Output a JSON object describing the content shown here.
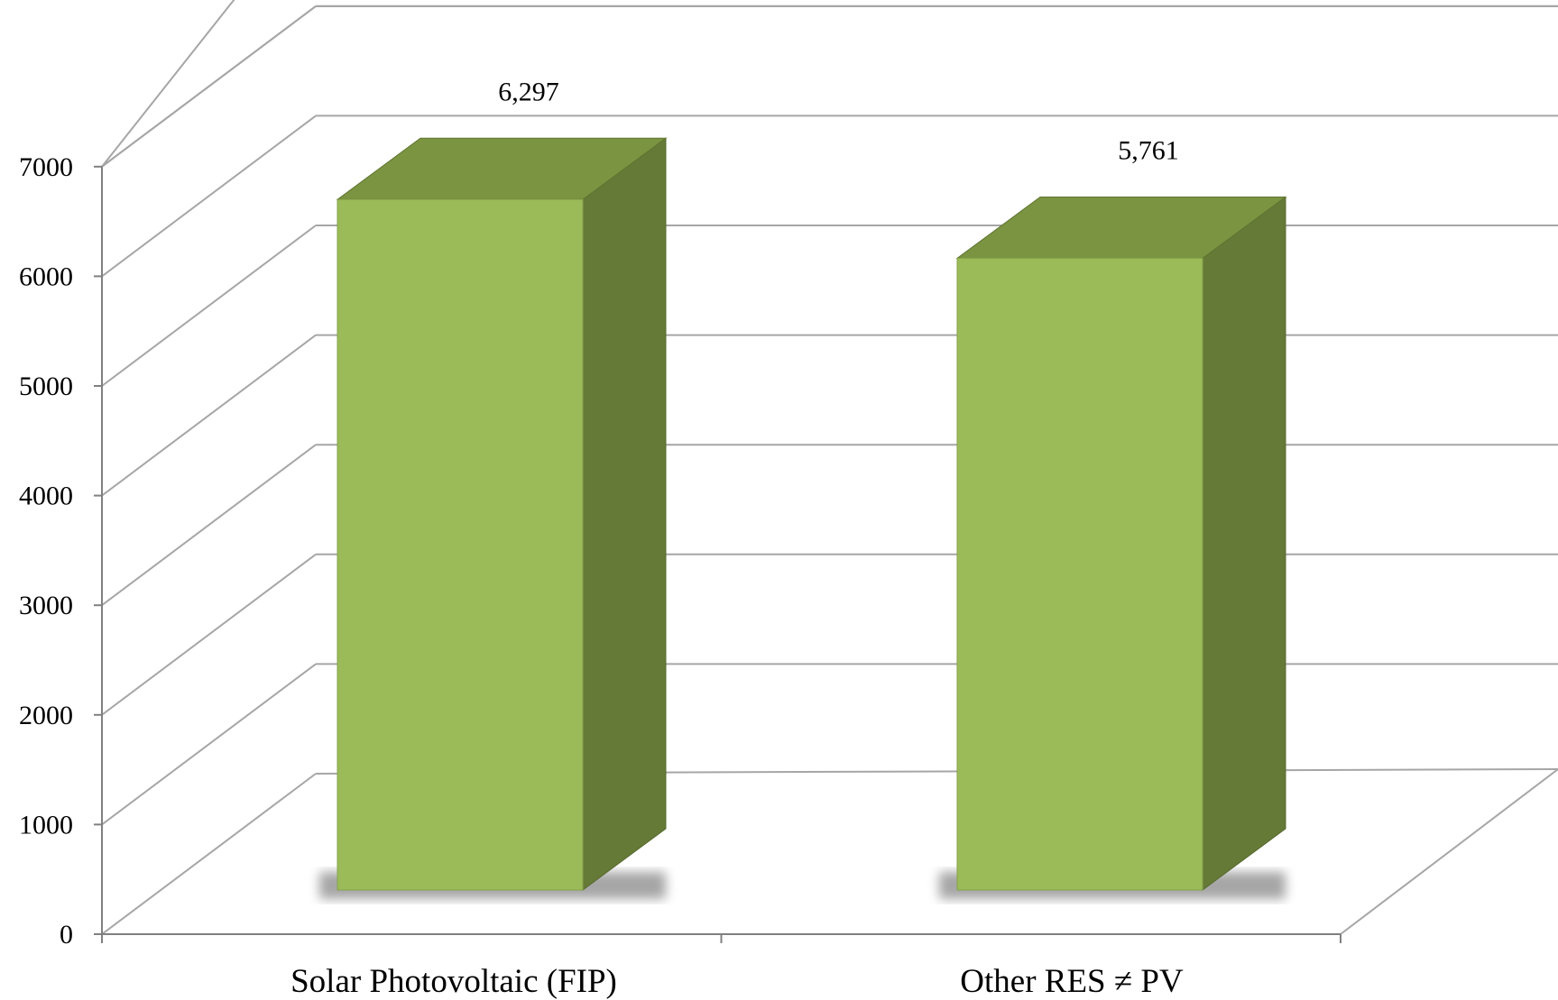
{
  "chart_data": {
    "type": "bar",
    "style": "3d-column",
    "categories": [
      "Solar Photovoltaic  (FIP)",
      "Other RES ≠ PV"
    ],
    "values": [
      6297,
      5761
    ],
    "data_labels": [
      "6,297",
      "5,761"
    ],
    "title": "",
    "xlabel": "",
    "ylabel": "",
    "ylim": [
      0,
      7000
    ],
    "yticks": [
      0,
      1000,
      2000,
      3000,
      4000,
      5000,
      6000,
      7000
    ],
    "grid": true,
    "legend": "none",
    "colors": {
      "bar_front": "#9bbb59",
      "bar_top": "#7a9442",
      "bar_side": "#667a37",
      "grid": "#a6a6a6",
      "axis": "#808080"
    }
  }
}
